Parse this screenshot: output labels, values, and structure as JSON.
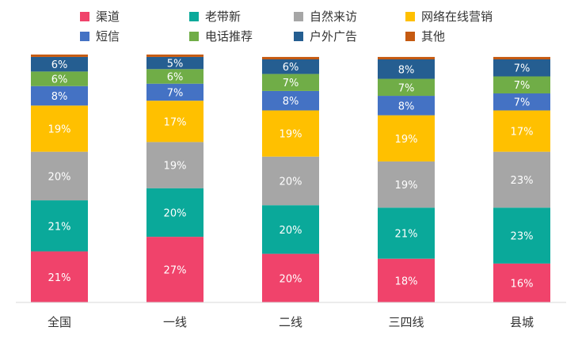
{
  "chart_data": {
    "type": "bar",
    "stacked": true,
    "categories": [
      "全国",
      "一线",
      "二线",
      "三四线",
      "县城"
    ],
    "series": [
      {
        "name": "渠道",
        "color": "#F0436B",
        "values": [
          21,
          27,
          20,
          18,
          16
        ]
      },
      {
        "name": "老带新",
        "color": "#0AA99A",
        "values": [
          21,
          20,
          20,
          21,
          23
        ]
      },
      {
        "name": "自然来访",
        "color": "#A6A6A6",
        "values": [
          20,
          19,
          20,
          19,
          23
        ]
      },
      {
        "name": "网络在线营销",
        "color": "#FFC000",
        "values": [
          19,
          17,
          19,
          19,
          17
        ]
      },
      {
        "name": "短信",
        "color": "#4472C4",
        "values": [
          8,
          7,
          8,
          8,
          7
        ]
      },
      {
        "name": "电话推荐",
        "color": "#70AD47",
        "values": [
          6,
          6,
          7,
          7,
          7
        ]
      },
      {
        "name": "户外广告",
        "color": "#255E91",
        "values": [
          6,
          5,
          6,
          8,
          7
        ]
      },
      {
        "name": "其他",
        "color": "#C55A11",
        "values": [
          1,
          1,
          1,
          1,
          1
        ]
      }
    ],
    "value_suffix": "%",
    "ylim": [
      0,
      100
    ],
    "grid": false,
    "legend_position": "top"
  }
}
